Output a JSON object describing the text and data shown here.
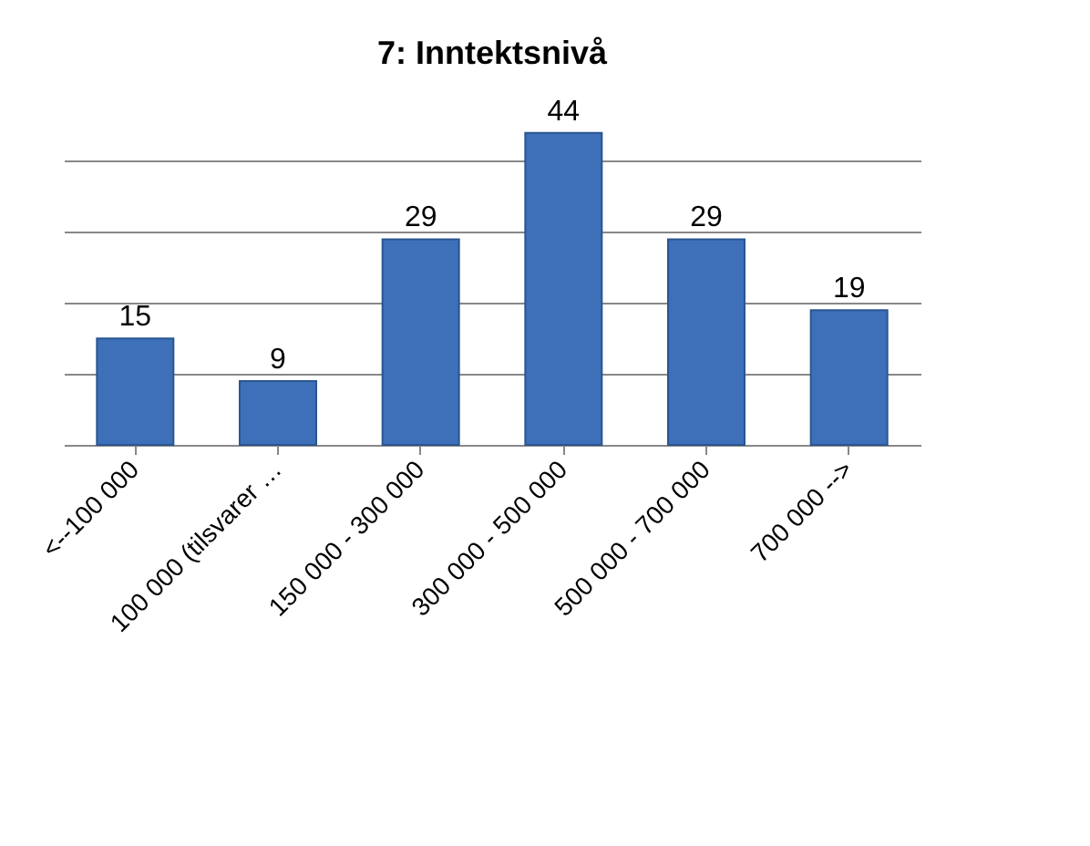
{
  "chart_data": {
    "type": "bar",
    "title": "7: Inntektsnivå",
    "categories": [
      "<--100 000",
      "100 000 (tilsvarer …",
      "150 000 - 300 000",
      "300 000 - 500 000",
      "500 000 - 700 000",
      "700 000 -->"
    ],
    "values": [
      15,
      9,
      29,
      44,
      29,
      19
    ],
    "color": "#3d70b8",
    "grid": "y",
    "tick_labels": "x",
    "data_labels": true
  }
}
